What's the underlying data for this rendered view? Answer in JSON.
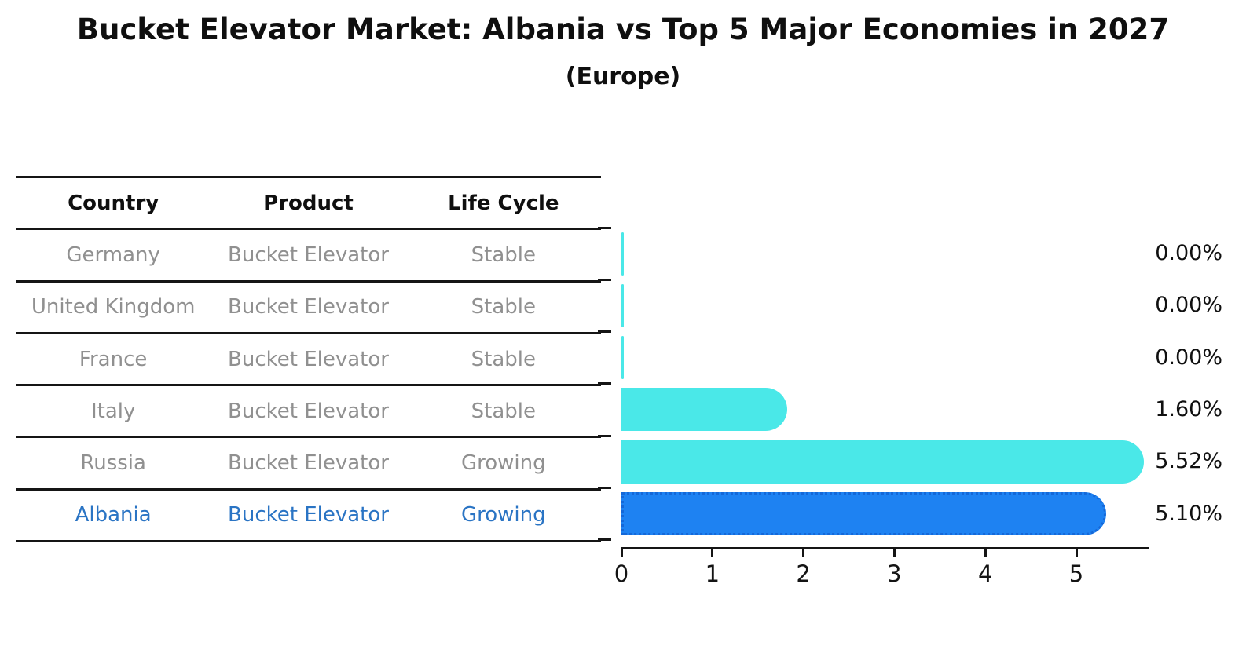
{
  "header": {
    "title": "Bucket Elevator Market: Albania vs Top 5 Major Economies in 2027",
    "subtitle": "(Europe)"
  },
  "table": {
    "headers": [
      "Country",
      "Product",
      "Life Cycle"
    ],
    "rows": [
      {
        "country": "Germany",
        "product": "Bucket Elevator",
        "life_cycle": "Stable",
        "highlight": false
      },
      {
        "country": "United Kingdom",
        "product": "Bucket Elevator",
        "life_cycle": "Stable",
        "highlight": false
      },
      {
        "country": "France",
        "product": "Bucket Elevator",
        "life_cycle": "Stable",
        "highlight": false
      },
      {
        "country": "Italy",
        "product": "Bucket Elevator",
        "life_cycle": "Stable",
        "highlight": false
      },
      {
        "country": "Russia",
        "product": "Bucket Elevator",
        "life_cycle": "Growing",
        "highlight": false
      },
      {
        "country": "Albania",
        "product": "Bucket Elevator",
        "life_cycle": "Growing",
        "highlight": true
      }
    ]
  },
  "chart_data": {
    "type": "bar",
    "orientation": "horizontal",
    "title": "Bucket Elevator Market: Albania vs Top 5 Major Economies in 2027",
    "subtitle": "(Europe)",
    "categories": [
      "Germany",
      "United Kingdom",
      "France",
      "Italy",
      "Russia",
      "Albania"
    ],
    "values": [
      0.0,
      0.0,
      0.0,
      1.6,
      5.52,
      5.1
    ],
    "value_labels": [
      "0.00%",
      "0.00%",
      "0.00%",
      "1.60%",
      "5.52%",
      "5.10%"
    ],
    "xlabel": "",
    "ylabel": "",
    "xlim": [
      0,
      5.79
    ],
    "x_ticks": [
      0,
      1,
      2,
      3,
      4,
      5
    ],
    "x_tick_labels": [
      "0",
      "1",
      "2",
      "3",
      "4",
      "5"
    ],
    "grid": false,
    "legend": false,
    "highlight_index": 5
  },
  "colors": {
    "bar_cyan": "#4AE8E8",
    "bar_blue": "#1E82F2",
    "bar_blue_border": "#1568D8",
    "highlight_text": "#2a74c4",
    "table_text": "#909090",
    "header_text": "#0f0f0f",
    "line": "#151515",
    "value_text": "#101010"
  }
}
